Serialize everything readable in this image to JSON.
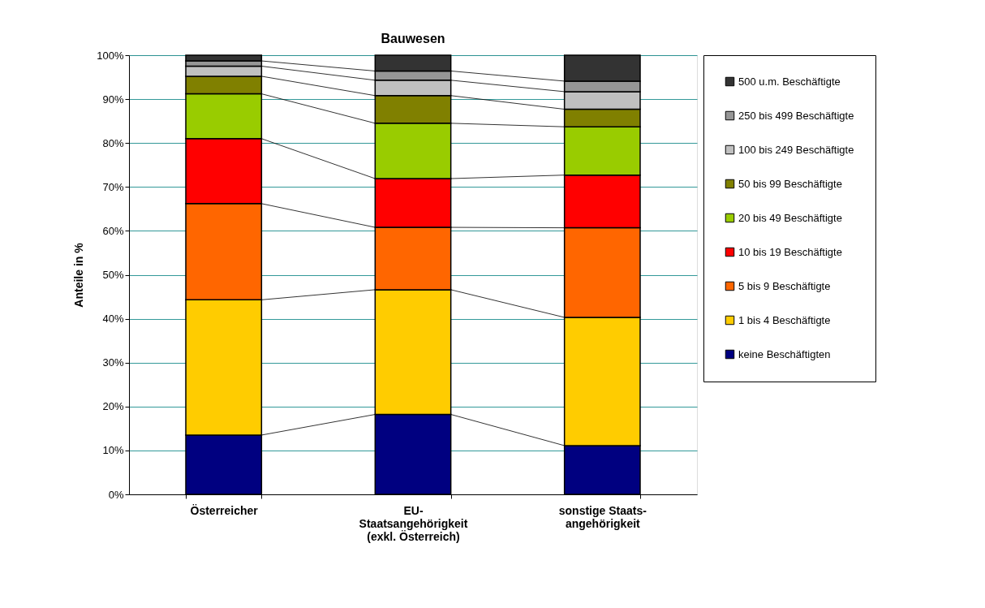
{
  "chart_data": {
    "type": "bar",
    "title": "Bauwesen",
    "ylabel": "Anteile in %",
    "categories": [
      "Österreicher",
      "EU-\nStaatsangehörigkeit\n(exkl. Österreich)",
      "sonstige Staats-\nangehörigkeit"
    ],
    "stacked": true,
    "legend": "right",
    "grid": "y",
    "ylim": [
      0,
      100
    ],
    "yticks": [
      {
        "value": 0,
        "label": "0%"
      },
      {
        "value": 10,
        "label": "10%"
      },
      {
        "value": 20,
        "label": "20%"
      },
      {
        "value": 30,
        "label": "30%"
      },
      {
        "value": 40,
        "label": "40%"
      },
      {
        "value": 50,
        "label": "50%"
      },
      {
        "value": 60,
        "label": "60%"
      },
      {
        "value": 70,
        "label": "70%"
      },
      {
        "value": 80,
        "label": "80%"
      },
      {
        "value": 90,
        "label": "90%"
      },
      {
        "value": 100,
        "label": "100%"
      }
    ],
    "series": [
      {
        "name": "keine Beschäftigten",
        "color": "#000080",
        "values": [
          13.5,
          18.2,
          11.1
        ]
      },
      {
        "name": "1 bis 4 Beschäftigte",
        "color": "#ffcc00",
        "values": [
          30.8,
          28.4,
          29.2
        ]
      },
      {
        "name": "5 bis 9 Beschäftigte",
        "color": "#ff6600",
        "values": [
          21.9,
          14.2,
          20.4
        ]
      },
      {
        "name": "10 bis 19 Beschäftigte",
        "color": "#ff0000",
        "values": [
          14.8,
          11.1,
          12.0
        ]
      },
      {
        "name": "20 bis 49 Beschäftigte",
        "color": "#99cc00",
        "values": [
          10.2,
          12.6,
          11.0
        ]
      },
      {
        "name": "50 bis 99 Beschäftigte",
        "color": "#808000",
        "values": [
          4.0,
          6.3,
          4.0
        ]
      },
      {
        "name": "100 bis 249 Beschäftigte",
        "color": "#c0c0c0",
        "values": [
          2.3,
          3.5,
          4.0
        ]
      },
      {
        "name": "250 bis 499 Beschäftigte",
        "color": "#969696",
        "values": [
          1.2,
          2.1,
          2.4
        ]
      },
      {
        "name": "500 u.m. Beschäftigte",
        "color": "#333333",
        "values": [
          1.3,
          3.6,
          5.9
        ]
      }
    ]
  }
}
